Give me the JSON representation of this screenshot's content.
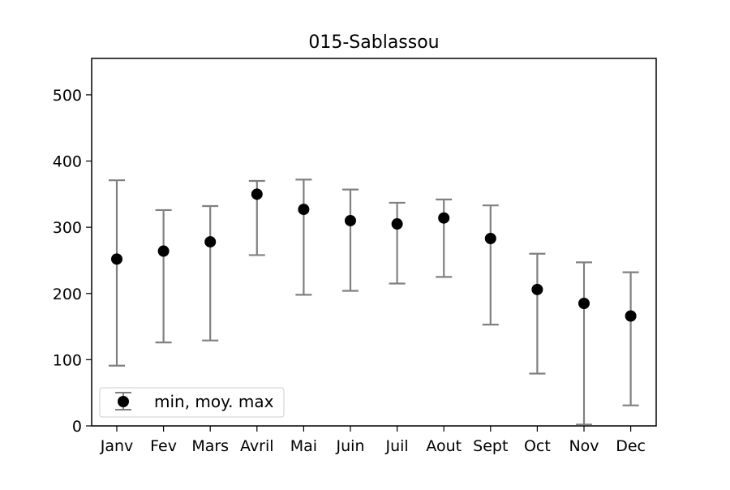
{
  "chart_data": {
    "type": "scatter",
    "title": "015-Sablassou",
    "xlabel": "",
    "ylabel": "",
    "categories": [
      "Janv",
      "Fev",
      "Mars",
      "Avril",
      "Mai",
      "Juin",
      "Juil",
      "Aout",
      "Sept",
      "Oct",
      "Nov",
      "Dec"
    ],
    "series": [
      {
        "name": "min, moy. max",
        "mean": [
          252,
          264,
          278,
          350,
          327,
          310,
          305,
          314,
          283,
          206,
          185,
          166
        ],
        "min": [
          91,
          126,
          129,
          258,
          198,
          204,
          215,
          225,
          153,
          79,
          2,
          31
        ],
        "max": [
          371,
          326,
          332,
          370,
          372,
          357,
          337,
          342,
          333,
          260,
          247,
          232
        ]
      }
    ],
    "ylim": [
      0,
      555
    ],
    "yticks": [
      0,
      100,
      200,
      300,
      400,
      500
    ],
    "grid": false,
    "legend_position": "lower-left",
    "colors": {
      "marker": "#000000",
      "errorbar": "#808080",
      "axis": "#000000",
      "legend_border": "#cccccc"
    }
  }
}
